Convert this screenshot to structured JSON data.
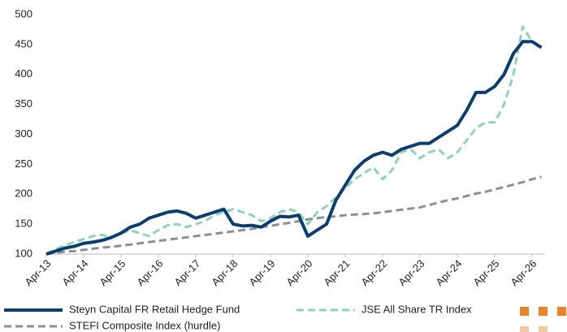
{
  "chart_data": {
    "type": "line",
    "categories": [
      "Apr-13",
      null,
      null,
      null,
      "Apr-14",
      null,
      null,
      null,
      "Apr-15",
      null,
      null,
      null,
      "Apr-16",
      null,
      null,
      null,
      "Apr-17",
      null,
      null,
      null,
      "Apr-18",
      null,
      null,
      null,
      "Apr-19",
      null,
      null,
      null,
      "Apr-20",
      null,
      null,
      null,
      "Apr-21",
      null,
      null,
      null,
      "Apr-22",
      null,
      null,
      null,
      "Apr-23",
      null,
      null,
      null,
      "Apr-24",
      null,
      null,
      null,
      "Apr-25",
      null,
      null,
      null,
      "Apr-26",
      null
    ],
    "series": [
      {
        "name": "Steyn Capital FR Retail Hedge Fund",
        "color": "#0b3d6e",
        "line_style": "solid",
        "values": [
          100,
          105,
          110,
          113,
          118,
          120,
          123,
          128,
          135,
          145,
          150,
          160,
          165,
          170,
          172,
          168,
          160,
          165,
          170,
          175,
          150,
          147,
          148,
          145,
          155,
          163,
          162,
          165,
          130,
          140,
          150,
          190,
          215,
          240,
          255,
          265,
          270,
          265,
          275,
          280,
          285,
          285,
          295,
          305,
          315,
          340,
          370,
          370,
          380,
          400,
          435,
          455,
          455,
          445
        ]
      },
      {
        "name": "JSE All Share TR Index",
        "color": "#8fd3b6",
        "line_style": "dashed",
        "values": [
          100,
          108,
          115,
          120,
          125,
          130,
          132,
          128,
          135,
          140,
          135,
          130,
          140,
          148,
          150,
          145,
          150,
          155,
          165,
          170,
          175,
          170,
          165,
          155,
          160,
          170,
          175,
          170,
          150,
          170,
          180,
          195,
          210,
          225,
          235,
          245,
          225,
          240,
          270,
          275,
          260,
          270,
          275,
          260,
          270,
          290,
          310,
          320,
          320,
          350,
          400,
          480,
          455,
          445
        ]
      },
      {
        "name": "STEFI Composite Index (hurdle)",
        "color": "#8a8f99",
        "line_style": "dashed",
        "values": [
          100,
          102,
          104,
          105,
          107,
          109,
          111,
          112,
          114,
          116,
          118,
          120,
          122,
          124,
          126,
          128,
          130,
          132,
          134,
          136,
          138,
          140,
          142,
          145,
          147,
          150,
          152,
          155,
          158,
          160,
          162,
          163,
          165,
          166,
          167,
          168,
          170,
          172,
          174,
          176,
          178,
          182,
          186,
          190,
          193,
          197,
          201,
          204,
          208,
          212,
          216,
          220,
          225,
          229
        ]
      }
    ],
    "ylim": [
      100,
      500
    ],
    "yticks": [
      100,
      150,
      200,
      250,
      300,
      350,
      400,
      450,
      500
    ],
    "grid": false
  }
}
